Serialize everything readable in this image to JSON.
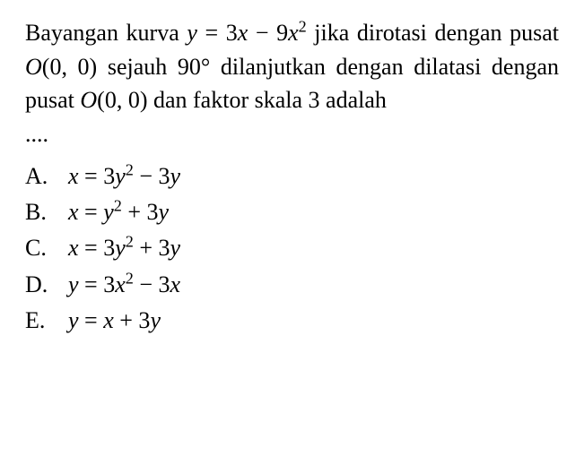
{
  "question": {
    "line1_pre": "Bayangan kurva ",
    "eq1_y": "y",
    "eq1_mid": " = 3",
    "eq1_x": "x",
    "eq1_mid2": " − 9",
    "eq1_x2": "x",
    "eq1_sup": "2",
    "line1_post": " jika",
    "line2_pre": "dirotasi dengan pusat ",
    "line2_O": "O",
    "line2_post": "(0, 0) sejauh",
    "line3": "90° dilanjutkan dengan dilatasi dengan",
    "line4_pre": "pusat ",
    "line4_O": "O",
    "line4_post": "(0, 0) dan faktor skala 3 adalah",
    "line5": "...."
  },
  "options": {
    "a": {
      "label": "A.",
      "v1": "x",
      "t1": " = 3",
      "v2": "y",
      "sup": "2",
      "t2": " − 3",
      "v3": "y"
    },
    "b": {
      "label": "B.",
      "v1": "x",
      "t1": " = ",
      "v2": "y",
      "sup": "2",
      "t2": " + 3",
      "v3": "y"
    },
    "c": {
      "label": "C.",
      "v1": "x",
      "t1": " = 3",
      "v2": "y",
      "sup": "2",
      "t2": " + 3",
      "v3": "y"
    },
    "d": {
      "label": "D.",
      "v1": "y",
      "t1": " = 3",
      "v2": "x",
      "sup": "2",
      "t2": " − 3",
      "v3": "x"
    },
    "e": {
      "label": "E.",
      "v1": "y",
      "t1": " = ",
      "v2": "x",
      "t2": " + 3",
      "v3": "y"
    }
  }
}
